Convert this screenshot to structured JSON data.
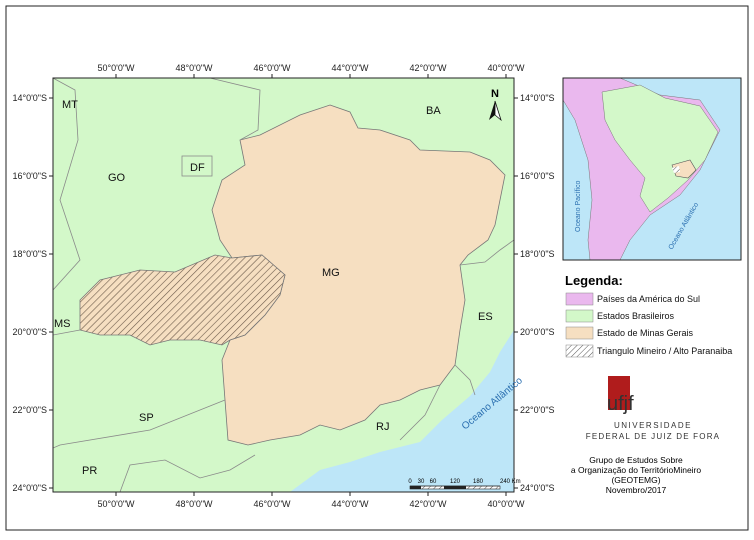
{
  "map": {
    "graticule": {
      "longitudes": [
        "50°0'0\"W",
        "48°0'0\"W",
        "46°0'0\"W",
        "44°0'0\"W",
        "42°0'0\"W",
        "40°0'0\"W"
      ],
      "latitudes": [
        "14°0'0\"S",
        "16°0'0\"S",
        "18°0'0\"S",
        "20°0'0\"S",
        "22°0'0\"S",
        "24°0'0\"S"
      ]
    },
    "states": {
      "MT": "MT",
      "GO": "GO",
      "DF": "DF",
      "BA": "BA",
      "MG": "MG",
      "ES": "ES",
      "MS": "MS",
      "SP": "SP",
      "RJ": "RJ",
      "PR": "PR"
    },
    "ocean": "Oceano Atlântico",
    "north": "N",
    "scale_bar": {
      "labels": [
        "0",
        "30",
        "60",
        "120",
        "180",
        "240 Km"
      ]
    }
  },
  "inset": {
    "pacific": "Oceano Pacífico",
    "atlantic": "Oceano Atlântico"
  },
  "legend": {
    "title": "Legenda:",
    "items": [
      "Países da América do Sul",
      "Estados Brasileiros",
      "Estado de Minas Gerais",
      "Triangulo Mineiro / Alto Paranaiba"
    ]
  },
  "logo": {
    "mark": "ufjf",
    "line1": "UNIVERSIDADE",
    "line2": "FEDERAL DE JUIZ DE FORA"
  },
  "credits": [
    "Grupo de Estudos Sobre",
    "a Organização do TerritórioMineiro",
    "(GEOTEMG)",
    "Novembro/2017"
  ]
}
